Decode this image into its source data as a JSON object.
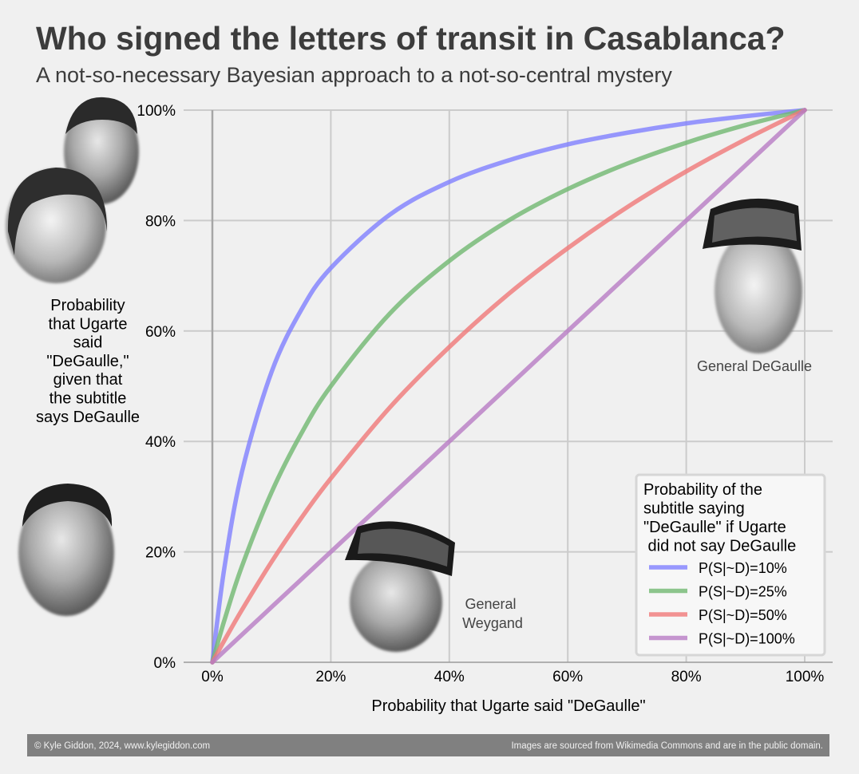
{
  "header": {
    "title": "Who signed the letters of transit in Casablanca?",
    "subtitle": "A not-so-necessary Bayesian approach to a not-so-central mystery"
  },
  "chart_data": {
    "type": "line",
    "title": "Who signed the letters of transit in Casablanca?",
    "subtitle": "A not-so-necessary Bayesian approach to a not-so-central mystery",
    "xlabel": "Probability that Ugarte said \"DeGaulle\"",
    "ylabel_lines": [
      "Probability",
      "that Ugarte",
      "said",
      "\"DeGaulle,\"",
      "given that",
      "the subtitle",
      "says DeGaulle"
    ],
    "xlim": [
      0,
      1
    ],
    "ylim": [
      0,
      1
    ],
    "x_ticks": [
      0,
      0.2,
      0.4,
      0.6,
      0.8,
      1.0
    ],
    "x_tick_labels": [
      "0%",
      "20%",
      "40%",
      "60%",
      "80%",
      "100%"
    ],
    "y_ticks": [
      0,
      0.2,
      0.4,
      0.6,
      0.8,
      1.0
    ],
    "y_tick_labels": [
      "0%",
      "20%",
      "40%",
      "60%",
      "80%",
      "100%"
    ],
    "grid": true,
    "x": [
      0,
      0.02,
      0.05,
      0.1,
      0.15,
      0.2,
      0.3,
      0.4,
      0.5,
      0.6,
      0.7,
      0.8,
      0.9,
      1.0
    ],
    "series": [
      {
        "name": "P(S|~D)=10%",
        "color": "#8080ff",
        "values": [
          0,
          0.169,
          0.345,
          0.526,
          0.638,
          0.714,
          0.811,
          0.87,
          0.909,
          0.938,
          0.959,
          0.976,
          0.989,
          1.0
        ]
      },
      {
        "name": "P(S|~D)=25%",
        "color": "#70b870",
        "values": [
          0,
          0.075,
          0.174,
          0.308,
          0.414,
          0.5,
          0.632,
          0.727,
          0.8,
          0.857,
          0.903,
          0.941,
          0.973,
          1.0
        ]
      },
      {
        "name": "P(S|~D)=50%",
        "color": "#f07878",
        "values": [
          0,
          0.039,
          0.095,
          0.182,
          0.261,
          0.333,
          0.462,
          0.571,
          0.667,
          0.75,
          0.824,
          0.889,
          0.947,
          1.0
        ]
      },
      {
        "name": "P(S|~D)=100%",
        "color": "#b87cc4",
        "values": [
          0,
          0.02,
          0.05,
          0.1,
          0.15,
          0.2,
          0.3,
          0.4,
          0.5,
          0.6,
          0.7,
          0.8,
          0.9,
          1.0
        ]
      }
    ],
    "legend": {
      "title_lines": [
        "Probability of the",
        "subtitle saying",
        "\"DeGaulle\" if Ugarte",
        " did not say DeGaulle"
      ],
      "placement": "bottom-right"
    },
    "annotations": [
      {
        "id": "degaulle",
        "lines": [
          "General DeGaulle"
        ]
      },
      {
        "id": "weygand",
        "lines": [
          "General",
          "Weygand"
        ]
      }
    ]
  },
  "footer": {
    "left": "© Kyle Giddon, 2024, www.kylegiddon.com",
    "right": "Images are sourced from Wikimedia Commons and are in the public domain."
  },
  "images": [
    {
      "id": "bogart-bergman-photo",
      "subject": "black-and-white portrait of a man and a woman"
    },
    {
      "id": "ugarte-photo",
      "subject": "black-and-white portrait of a smiling man"
    },
    {
      "id": "degaulle-photo",
      "subject": "black-and-white portrait of General DeGaulle in kepi"
    },
    {
      "id": "weygand-photo",
      "subject": "black-and-white portrait of General Weygand in kepi"
    }
  ]
}
